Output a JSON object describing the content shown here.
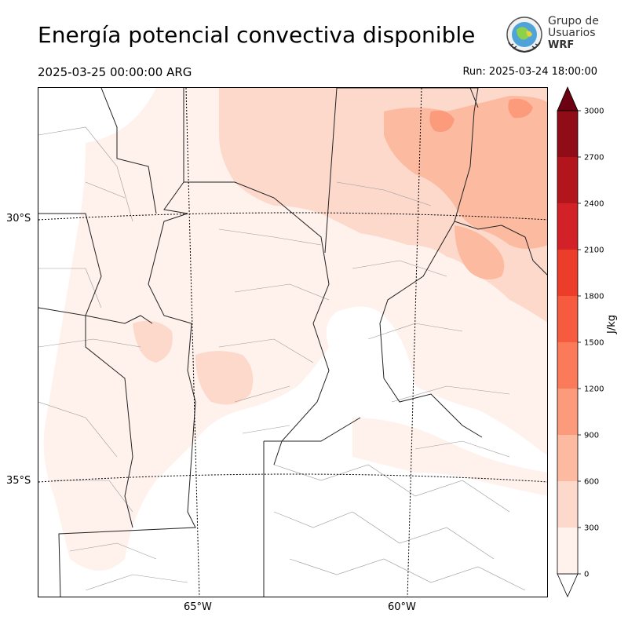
{
  "header": {
    "title": "Energía potencial convectiva disponible",
    "valid_time": "2025-03-25 00:00:00 ARG",
    "run_time": "Run: 2025-03-24 18:00:00"
  },
  "logo": {
    "line1": "Grupo de",
    "line2": "Usuarios",
    "line3": "WRF"
  },
  "map": {
    "lat_labels": [
      "30°S",
      "35°S"
    ],
    "lon_labels": [
      "65°W",
      "60°W"
    ]
  },
  "colorbar": {
    "unit": "J/kg",
    "levels": [
      0,
      300,
      600,
      900,
      1200,
      1500,
      1800,
      2100,
      2400,
      2700,
      3000
    ],
    "colors": [
      "#fff1ec",
      "#fdd9cb",
      "#fcbba1",
      "#fc9a7c",
      "#fb7a5a",
      "#f65b40",
      "#ec3d2b",
      "#d22127",
      "#b2161c",
      "#900c16"
    ],
    "over_color": "#6b0111",
    "under_color": "#ffffff"
  }
}
